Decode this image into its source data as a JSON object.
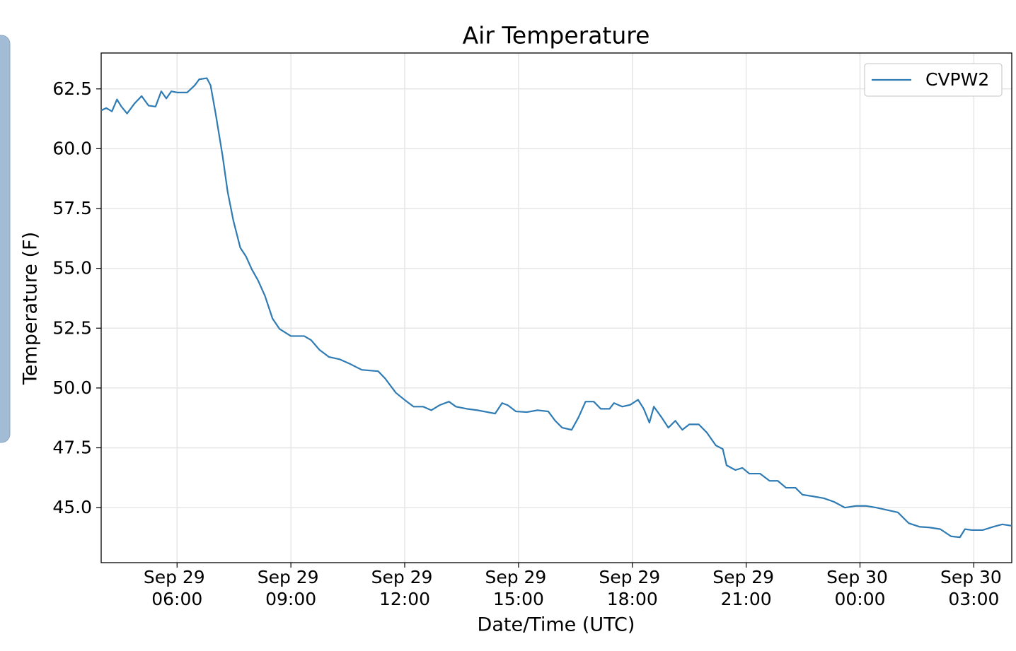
{
  "chart_data": {
    "type": "line",
    "title": "Air Temperature",
    "x_label": "Date/Time (UTC)",
    "y_label": "Temperature (F)",
    "x": [
      "Sep 29 04:00",
      "Sep 29 04:08",
      "Sep 29 04:17",
      "Sep 29 04:25",
      "Sep 29 04:32",
      "Sep 29 04:41",
      "Sep 29 04:53",
      "Sep 29 05:04",
      "Sep 29 05:15",
      "Sep 29 05:26",
      "Sep 29 05:35",
      "Sep 29 05:43",
      "Sep 29 05:51",
      "Sep 29 06:00",
      "Sep 29 06:16",
      "Sep 29 06:28",
      "Sep 29 06:35",
      "Sep 29 06:47",
      "Sep 29 06:53",
      "Sep 29 07:01",
      "Sep 29 07:12",
      "Sep 29 07:20",
      "Sep 29 07:29",
      "Sep 29 07:40",
      "Sep 29 07:49",
      "Sep 29 07:58",
      "Sep 29 08:08",
      "Sep 29 08:19",
      "Sep 29 08:31",
      "Sep 29 08:42",
      "Sep 29 09:00",
      "Sep 29 09:21",
      "Sep 29 09:32",
      "Sep 29 09:45",
      "Sep 29 10:00",
      "Sep 29 10:17",
      "Sep 29 10:34",
      "Sep 29 10:52",
      "Sep 29 11:18",
      "Sep 29 11:29",
      "Sep 29 11:46",
      "Sep 29 12:00",
      "Sep 29 12:14",
      "Sep 29 12:29",
      "Sep 29 12:42",
      "Sep 29 12:55",
      "Sep 29 13:10",
      "Sep 29 13:21",
      "Sep 29 13:38",
      "Sep 29 13:55",
      "Sep 29 14:11",
      "Sep 29 14:23",
      "Sep 29 14:34",
      "Sep 29 14:43",
      "Sep 29 14:56",
      "Sep 29 15:13",
      "Sep 29 15:30",
      "Sep 29 15:47",
      "Sep 29 15:58",
      "Sep 29 16:09",
      "Sep 29 16:24",
      "Sep 29 16:35",
      "Sep 29 16:46",
      "Sep 29 16:59",
      "Sep 29 17:10",
      "Sep 29 17:24",
      "Sep 29 17:31",
      "Sep 29 17:44",
      "Sep 29 17:57",
      "Sep 29 18:09",
      "Sep 29 18:18",
      "Sep 29 18:27",
      "Sep 29 18:34",
      "Sep 29 18:46",
      "Sep 29 18:57",
      "Sep 29 19:08",
      "Sep 29 19:19",
      "Sep 29 19:30",
      "Sep 29 19:45",
      "Sep 29 19:58",
      "Sep 29 20:12",
      "Sep 29 20:23",
      "Sep 29 20:29",
      "Sep 29 20:43",
      "Sep 29 20:54",
      "Sep 29 21:05",
      "Sep 29 21:22",
      "Sep 29 21:37",
      "Sep 29 21:50",
      "Sep 29 22:03",
      "Sep 29 22:18",
      "Sep 29 22:29",
      "Sep 29 22:46",
      "Sep 29 23:03",
      "Sep 29 23:19",
      "Sep 29 23:36",
      "Sep 29 23:53",
      "Sep 30 00:10",
      "Sep 30 00:26",
      "Sep 30 00:43",
      "Sep 30 01:00",
      "Sep 30 01:17",
      "Sep 30 01:34",
      "Sep 30 01:50",
      "Sep 30 02:07",
      "Sep 30 02:24",
      "Sep 30 02:38",
      "Sep 30 02:46",
      "Sep 30 02:57",
      "Sep 30 03:14",
      "Sep 30 03:31",
      "Sep 30 03:45",
      "Sep 30 04:00"
    ],
    "series": [
      {
        "name": "CVPW2",
        "color": "#2f7bb3",
        "values": [
          61.6,
          61.7,
          61.56,
          62.06,
          61.76,
          61.47,
          61.9,
          62.2,
          61.8,
          61.76,
          62.4,
          62.1,
          62.4,
          62.35,
          62.35,
          62.65,
          62.9,
          62.95,
          62.65,
          61.47,
          59.7,
          58.2,
          57.0,
          55.86,
          55.5,
          54.97,
          54.5,
          53.85,
          52.9,
          52.47,
          52.17,
          52.17,
          52.0,
          51.6,
          51.3,
          51.2,
          51.0,
          50.76,
          50.7,
          50.4,
          49.8,
          49.5,
          49.22,
          49.22,
          49.07,
          49.28,
          49.43,
          49.22,
          49.13,
          49.07,
          48.99,
          48.93,
          49.37,
          49.28,
          49.02,
          48.99,
          49.07,
          49.02,
          48.63,
          48.34,
          48.25,
          48.78,
          49.43,
          49.43,
          49.13,
          49.13,
          49.37,
          49.22,
          49.3,
          49.51,
          49.13,
          48.55,
          49.22,
          48.78,
          48.34,
          48.63,
          48.25,
          48.48,
          48.48,
          48.13,
          47.6,
          47.45,
          46.77,
          46.57,
          46.66,
          46.42,
          46.42,
          46.12,
          46.12,
          45.83,
          45.83,
          45.54,
          45.47,
          45.39,
          45.24,
          45.0,
          45.07,
          45.07,
          45.0,
          44.9,
          44.8,
          44.35,
          44.2,
          44.17,
          44.1,
          43.8,
          43.76,
          44.1,
          44.06,
          44.06,
          44.2,
          44.3,
          44.24
        ]
      }
    ],
    "xlim": [
      "Sep 29 04:00",
      "Sep 30 04:00"
    ],
    "xticks": [
      "Sep 29 06:00",
      "Sep 29 09:00",
      "Sep 29 12:00",
      "Sep 29 15:00",
      "Sep 29 18:00",
      "Sep 29 21:00",
      "Sep 30 00:00",
      "Sep 30 03:00"
    ],
    "ylim": [
      42.7,
      64.0
    ],
    "yticks": [
      {
        "value": 45,
        "label": "45.0"
      },
      47.5,
      {
        "value": 50,
        "label": "50.0"
      },
      52.5,
      {
        "value": 55,
        "label": "55.0"
      },
      57.5,
      {
        "value": 60,
        "label": "60.0"
      },
      62.5
    ],
    "grid": true,
    "legend": "upper right"
  }
}
